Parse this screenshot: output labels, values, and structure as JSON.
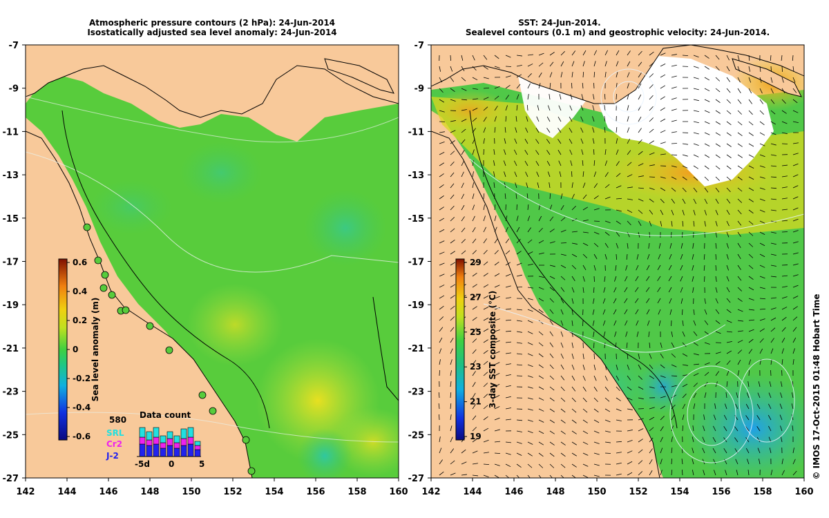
{
  "left_panel": {
    "title_line1": "Atmospheric pressure contours (2 hPa): 24-Jun-2014",
    "title_line2": "Isostatically adjusted sea level anomaly: 24-Jun-2014",
    "lon_ticks": [
      "142",
      "144",
      "146",
      "148",
      "150",
      "152",
      "154",
      "156",
      "158",
      "160"
    ],
    "lat_ticks": [
      "-7",
      "-9",
      "-11",
      "-13",
      "-15",
      "-17",
      "-19",
      "-21",
      "-23",
      "-25",
      "-27"
    ],
    "colorbar": {
      "label": "Sea level anomaly (m)",
      "ticks": [
        "0.6",
        "0.4",
        "0.2",
        "0",
        "-0.2",
        "-0.4",
        "-0.6"
      ]
    },
    "data_count": {
      "title": "Data count",
      "max_label": "580",
      "legend": [
        "SRL",
        "Cr2",
        "J-2"
      ],
      "legend_colors": [
        "#22e0e0",
        "#ee22ee",
        "#2222ee"
      ],
      "axis_left": "-5d",
      "axis_mid": "0",
      "axis_right": "5"
    }
  },
  "right_panel": {
    "title_line1": "SST: 24-Jun-2014.",
    "title_line2": "Sealevel contours (0.1 m) and geostrophic velocity: 24-Jun-2014.",
    "lon_ticks": [
      "142",
      "144",
      "146",
      "148",
      "150",
      "152",
      "154",
      "156",
      "158",
      "160"
    ],
    "lat_ticks": [
      "-7",
      "-9",
      "-11",
      "-13",
      "-15",
      "-17",
      "-19",
      "-21",
      "-23",
      "-25",
      "-27"
    ],
    "colorbar": {
      "label": "3-day SST composite (°C)",
      "ticks": [
        "29",
        "27",
        "25",
        "23",
        "21",
        "19"
      ]
    }
  },
  "credit": "© IMOS 17-Oct-2015 01:48 Hobart Time",
  "colors": {
    "land": "#f8c99a",
    "ocean_green": "#5cd040",
    "ocean_deep": "#3cb848",
    "warm_yellow": "#c8e030",
    "cloud": "#ffffff"
  }
}
